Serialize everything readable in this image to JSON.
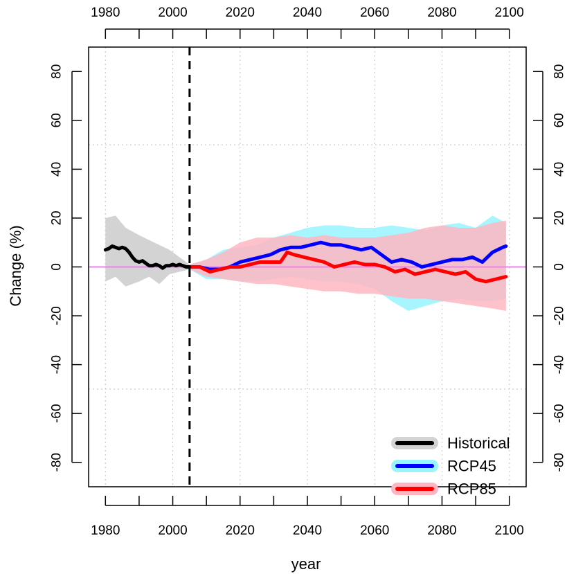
{
  "chart_data": {
    "type": "line",
    "title": "",
    "xlabel": "year",
    "ylabel": "Change (%)",
    "xlim": [
      1975,
      2105
    ],
    "ylim": [
      -90,
      90
    ],
    "x_ticks": [
      1980,
      2000,
      2020,
      2040,
      2060,
      2080,
      2100
    ],
    "x_minor_ticks": [
      1990,
      2010,
      2030,
      2050,
      2070,
      2090
    ],
    "y_ticks": [
      -80,
      -60,
      -40,
      -20,
      0,
      20,
      40,
      60,
      80
    ],
    "x_tick_labels": [
      "1980",
      "2000",
      "2020",
      "2040",
      "2060",
      "2080",
      "2100"
    ],
    "y_tick_labels": [
      "-80",
      "-60",
      "-40",
      "-20",
      "0",
      "20",
      "40",
      "60",
      "80"
    ],
    "grid": true,
    "grid_x": [
      1980,
      2000,
      2020,
      2040,
      2060,
      2080,
      2100
    ],
    "grid_y": [
      -50,
      0,
      50
    ],
    "baseline": 0,
    "baseline_color": "#ee82ee",
    "reference_year": 2005,
    "legend_position": "bottom-right",
    "series": [
      {
        "name": "Historical",
        "color": "#000000",
        "band_color": "#d3d3d3",
        "x": [
          1980,
          1981,
          1982,
          1983,
          1984,
          1985,
          1986,
          1987,
          1988,
          1989,
          1990,
          1991,
          1992,
          1993,
          1994,
          1995,
          1996,
          1997,
          1998,
          1999,
          2000,
          2001,
          2002,
          2003,
          2004,
          2005
        ],
        "y": [
          7,
          7.5,
          8.5,
          8,
          7.5,
          8,
          7.5,
          6,
          4,
          2.5,
          2,
          2.5,
          1.5,
          0.5,
          0.5,
          1,
          0.5,
          -0.5,
          0.5,
          0.5,
          1,
          0.5,
          1,
          0.5,
          0,
          0
        ],
        "band_x": [
          1980,
          1983,
          1986,
          1990,
          1993,
          1996,
          1999,
          2002,
          2005
        ],
        "band_upper": [
          20,
          21,
          16,
          13,
          11,
          9,
          7,
          4,
          1
        ],
        "band_lower": [
          -6,
          -4,
          -8,
          -6,
          -4,
          -7,
          -3,
          -2,
          -1
        ]
      },
      {
        "name": "RCP45",
        "color": "#0000ff",
        "band_color": "#98f5ff",
        "x": [
          2005,
          2008,
          2011,
          2014,
          2017,
          2020,
          2023,
          2026,
          2029,
          2032,
          2035,
          2038,
          2041,
          2044,
          2047,
          2050,
          2053,
          2056,
          2059,
          2062,
          2065,
          2068,
          2071,
          2074,
          2077,
          2080,
          2083,
          2086,
          2089,
          2092,
          2095,
          2098,
          2099
        ],
        "y": [
          0,
          0,
          -1,
          -1,
          0,
          2,
          3,
          4,
          5,
          7,
          8,
          8,
          9,
          10,
          9,
          9,
          8,
          7,
          8,
          5,
          2,
          3,
          2,
          0,
          1,
          2,
          3,
          3,
          4,
          2,
          6,
          8,
          8.5
        ],
        "band_x": [
          2005,
          2010,
          2015,
          2020,
          2025,
          2030,
          2035,
          2040,
          2045,
          2050,
          2055,
          2060,
          2065,
          2070,
          2075,
          2080,
          2085,
          2090,
          2095,
          2099
        ],
        "band_upper": [
          1,
          3,
          7,
          8,
          9,
          12,
          14,
          16,
          17,
          17,
          16,
          16,
          17,
          16,
          15,
          17,
          18,
          16,
          21,
          18
        ],
        "band_lower": [
          -1,
          -5,
          -5,
          -6,
          -6,
          -5,
          -4,
          -5,
          -6,
          -6,
          -7,
          -9,
          -14,
          -18,
          -16,
          -14,
          -13,
          -14,
          -14,
          -13
        ]
      },
      {
        "name": "RCP85",
        "color": "#ff0000",
        "band_color": "#ffb6c1",
        "x": [
          2005,
          2008,
          2011,
          2014,
          2017,
          2020,
          2023,
          2026,
          2029,
          2032,
          2034,
          2036,
          2039,
          2042,
          2045,
          2048,
          2051,
          2054,
          2057,
          2060,
          2063,
          2066,
          2069,
          2072,
          2075,
          2078,
          2081,
          2084,
          2087,
          2090,
          2093,
          2096,
          2099
        ],
        "y": [
          0,
          0,
          -2,
          -1,
          0,
          0,
          1,
          2,
          2,
          2,
          6,
          5,
          4,
          3,
          2,
          0,
          1,
          2,
          1,
          1,
          0,
          -2,
          -1,
          -3,
          -2,
          -1,
          -2,
          -3,
          -2,
          -5,
          -6,
          -5,
          -4
        ],
        "band_x": [
          2005,
          2010,
          2015,
          2020,
          2025,
          2030,
          2035,
          2040,
          2045,
          2050,
          2055,
          2060,
          2065,
          2070,
          2075,
          2080,
          2085,
          2090,
          2095,
          2099
        ],
        "band_upper": [
          1,
          3,
          6,
          10,
          12,
          12,
          13,
          12,
          13,
          12,
          12,
          12,
          13,
          14,
          16,
          17,
          16,
          16,
          18,
          19
        ],
        "band_lower": [
          -1,
          -4,
          -5,
          -6,
          -7,
          -7,
          -8,
          -9,
          -10,
          -10,
          -11,
          -11,
          -12,
          -13,
          -13,
          -14,
          -15,
          -16,
          -17,
          -18
        ]
      }
    ]
  }
}
